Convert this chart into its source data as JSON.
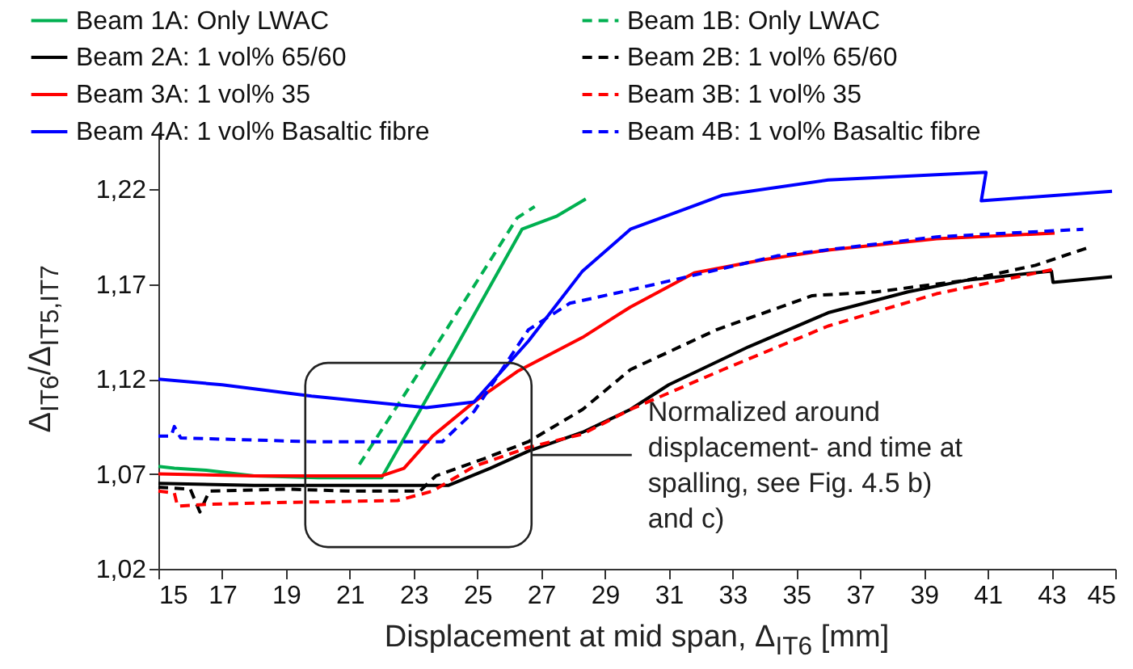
{
  "chart_data": {
    "type": "line",
    "xlabel": "Displacement at mid span, Δ$_{IT6}$ [mm]",
    "ylabel": "Δ$_{IT6}$/Δ$_{IT5,IT7}$",
    "xlim": [
      15,
      45
    ],
    "xticks": [
      15,
      17,
      19,
      21,
      23,
      25,
      27,
      29,
      31,
      33,
      35,
      37,
      39,
      41,
      43,
      45
    ],
    "ylim": [
      1.02,
      1.25
    ],
    "yticks": [
      {
        "value": 1.02,
        "label": "1,02"
      },
      {
        "value": 1.07,
        "label": "1,07"
      },
      {
        "value": 1.12,
        "label": "1,12"
      },
      {
        "value": 1.17,
        "label": "1,17"
      },
      {
        "value": 1.22,
        "label": "1,22"
      }
    ],
    "grid": false,
    "legend": "top",
    "marker": "none",
    "annotations": [
      {
        "text": "Normalized around displacement- and time at spalling, see Fig. 4.5 b) and c)",
        "x": 26.7,
        "y": 1.08
      }
    ],
    "series": [
      {
        "name": "Beam 1A: Only LWAC",
        "color": "#00b050",
        "line_style": "solid",
        "x": [
          15,
          15.5,
          16.5,
          18,
          20,
          22.0,
          24.2,
          26.4,
          27.5,
          28.4
        ],
        "values": [
          1.074,
          1.073,
          1.072,
          1.069,
          1.068,
          1.068,
          1.133,
          1.199,
          1.206,
          1.215
        ]
      },
      {
        "name": "Beam 1B: Only LWAC",
        "color": "#00b050",
        "line_style": "dashed",
        "x": [
          21.3,
          23.8,
          26.25,
          26.8
        ],
        "values": [
          1.075,
          1.14,
          1.205,
          1.211
        ]
      },
      {
        "name": "Beam 2A: 1 vol% 65/60",
        "color": "#000000",
        "line_style": "solid",
        "x": [
          15,
          18,
          21,
          24.1,
          25.4,
          26.6,
          28.3,
          29.8,
          31.0,
          33.5,
          36.0,
          38.5,
          40.3,
          43.0,
          43.05,
          44.9
        ],
        "values": [
          1.065,
          1.064,
          1.064,
          1.064,
          1.073,
          1.082,
          1.092,
          1.104,
          1.117,
          1.137,
          1.155,
          1.166,
          1.172,
          1.177,
          1.171,
          1.174
        ]
      },
      {
        "name": "Beam 2B: 1 vol% 65/60",
        "color": "#000000",
        "line_style": "dashed",
        "x": [
          15,
          16.0,
          16.3,
          16.6,
          19,
          21,
          23.2,
          23.7,
          25.2,
          26.6,
          28.3,
          29.8,
          32.5,
          35.5,
          37.5,
          40.3,
          42.5,
          44.1
        ],
        "values": [
          1.063,
          1.062,
          1.05,
          1.061,
          1.062,
          1.061,
          1.061,
          1.069,
          1.078,
          1.087,
          1.104,
          1.125,
          1.146,
          1.164,
          1.166,
          1.172,
          1.18,
          1.189
        ]
      },
      {
        "name": "Beam 3A: 1 vol% 35",
        "color": "#ff0000",
        "line_style": "solid",
        "x": [
          15,
          18,
          22.0,
          22.7,
          23.6,
          24.9,
          26.25,
          28.3,
          29.8,
          31.8,
          34,
          36.0,
          39.4,
          43.1
        ],
        "values": [
          1.07,
          1.069,
          1.069,
          1.073,
          1.09,
          1.108,
          1.124,
          1.142,
          1.158,
          1.176,
          1.183,
          1.188,
          1.194,
          1.197
        ]
      },
      {
        "name": "Beam 3B: 1 vol% 35",
        "color": "#ff0000",
        "line_style": "dashed",
        "x": [
          15,
          15.5,
          15.6,
          16.5,
          19,
          22.5,
          23.6,
          24.9,
          26.6,
          28.3,
          29.8,
          32.7,
          36.0,
          39.4,
          43.1
        ],
        "values": [
          1.061,
          1.06,
          1.053,
          1.054,
          1.055,
          1.056,
          1.061,
          1.074,
          1.084,
          1.091,
          1.104,
          1.125,
          1.148,
          1.165,
          1.178
        ]
      },
      {
        "name": "Beam 4A: 1 vol% Basaltic fibre",
        "color": "#0000ff",
        "line_style": "solid",
        "x": [
          15,
          17,
          19.8,
          23.4,
          24.9,
          26.6,
          28.3,
          29.8,
          32.7,
          36.0,
          40.95,
          40.8,
          44.9
        ],
        "values": [
          1.12,
          1.117,
          1.111,
          1.105,
          1.108,
          1.14,
          1.177,
          1.199,
          1.217,
          1.225,
          1.229,
          1.214,
          1.219
        ]
      },
      {
        "name": "Beam 4B: 1 vol% Basaltic fibre",
        "color": "#0000ff",
        "line_style": "dashed",
        "x": [
          15,
          15.4,
          15.5,
          15.7,
          19.8,
          23.9,
          24.9,
          26.6,
          27.9,
          29.8,
          34.4,
          39.4,
          44.0
        ],
        "values": [
          1.09,
          1.09,
          1.095,
          1.089,
          1.087,
          1.087,
          1.103,
          1.146,
          1.16,
          1.167,
          1.185,
          1.195,
          1.199
        ]
      }
    ]
  }
}
